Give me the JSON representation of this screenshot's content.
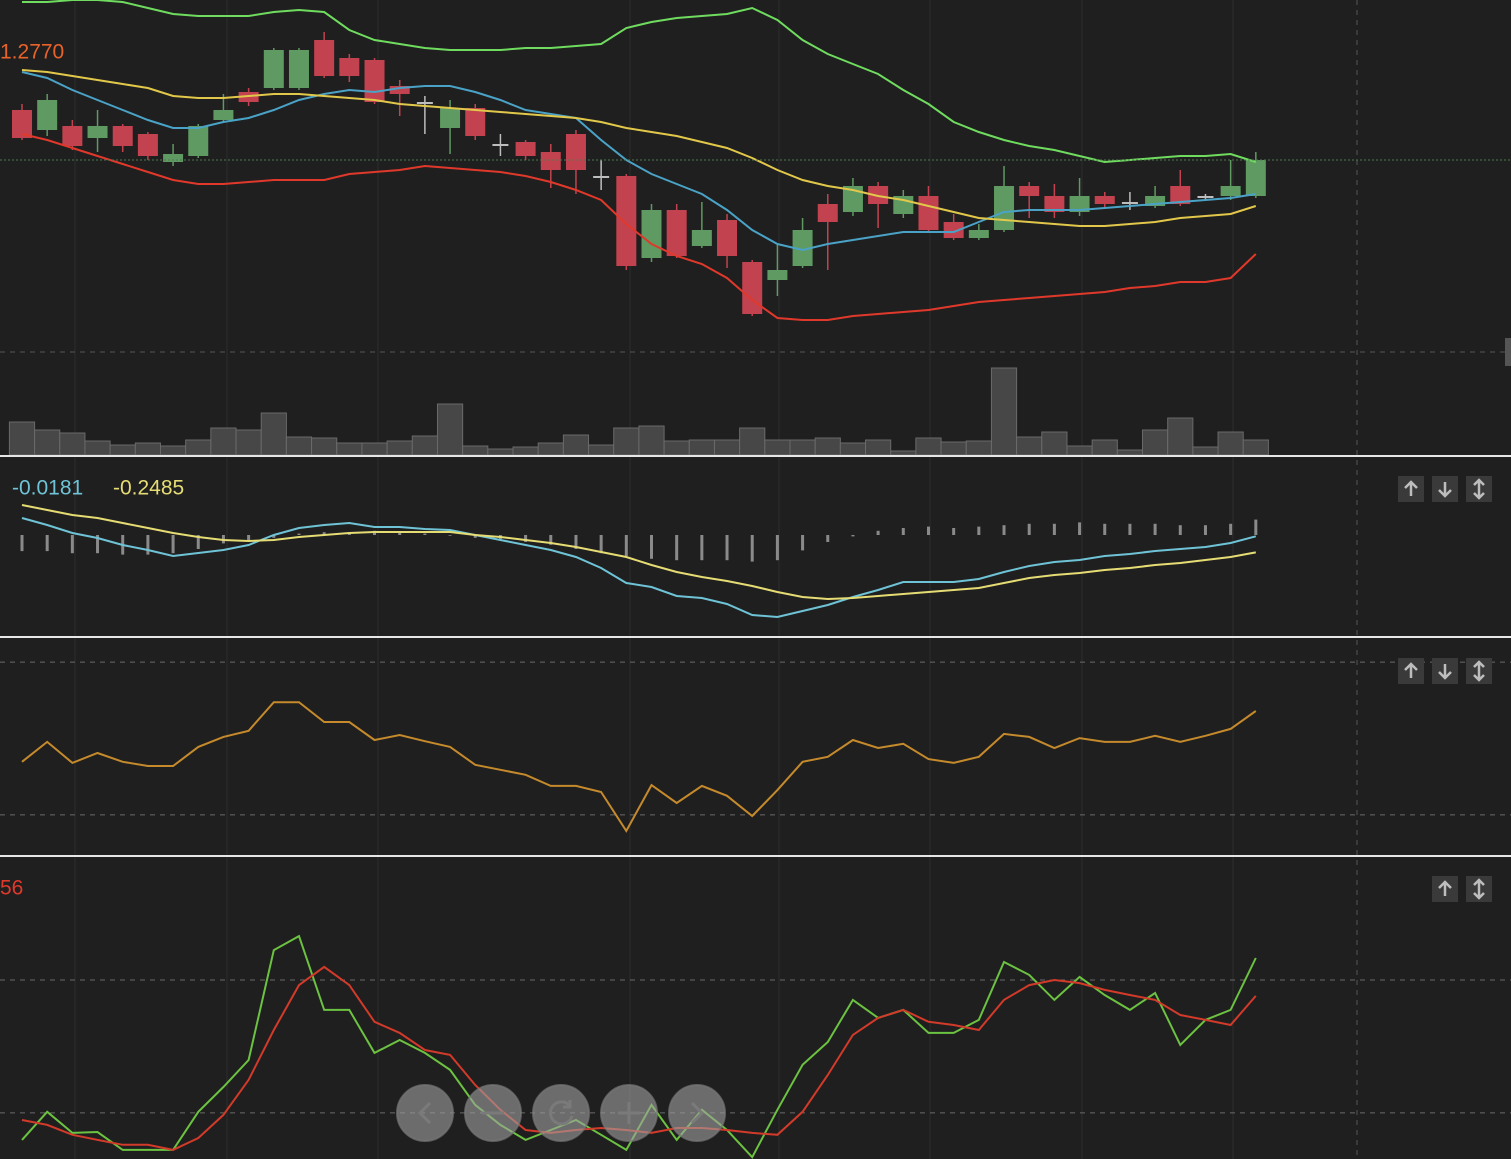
{
  "chart_data": [
    {
      "type": "candlestick",
      "annotation": "1.2770",
      "annotation_color": "#e8632a",
      "ylim": [
        1.2624,
        1.28
      ],
      "colors": {
        "up": "#5e9a62",
        "down": "#c2434f",
        "doji": "#bdbdbd"
      },
      "open": [
        1.2745,
        1.2735,
        1.2737,
        1.2731,
        1.2737,
        1.2733,
        1.2719,
        1.2722,
        1.274,
        1.2754,
        1.2756,
        1.2756,
        1.278,
        1.2771,
        1.277,
        1.2757,
        1.2749,
        1.2736,
        1.2746,
        1.2728,
        1.2729,
        1.2724,
        1.2733,
        1.2712,
        1.2712,
        1.2671,
        1.2695,
        1.2677,
        1.269,
        1.2669,
        1.266,
        1.2667,
        1.2698,
        1.2694,
        1.2707,
        1.2693,
        1.2702,
        1.2689,
        1.2681,
        1.2685,
        1.2707,
        1.2702,
        1.2694,
        1.2702,
        1.2699,
        1.2697,
        1.2707,
        1.2702,
        1.2702,
        1.2702
      ],
      "high": [
        1.2748,
        1.2753,
        1.274,
        1.2745,
        1.2738,
        1.2734,
        1.2728,
        1.2738,
        1.2753,
        1.2756,
        1.2776,
        1.2776,
        1.2784,
        1.2773,
        1.2771,
        1.276,
        1.2752,
        1.275,
        1.2748,
        1.2733,
        1.273,
        1.2728,
        1.2735,
        1.272,
        1.2713,
        1.2698,
        1.2698,
        1.2699,
        1.2693,
        1.267,
        1.2678,
        1.2691,
        1.2703,
        1.2711,
        1.2709,
        1.2705,
        1.2707,
        1.2693,
        1.2688,
        1.2717,
        1.2709,
        1.2708,
        1.2711,
        1.2704,
        1.2704,
        1.2707,
        1.2715,
        1.2703,
        1.272,
        1.2724
      ],
      "low": [
        1.273,
        1.2732,
        1.2725,
        1.2724,
        1.2724,
        1.272,
        1.2717,
        1.2721,
        1.2739,
        1.2747,
        1.2755,
        1.2755,
        1.2761,
        1.2759,
        1.2748,
        1.2742,
        1.2733,
        1.2723,
        1.273,
        1.2722,
        1.272,
        1.2706,
        1.2703,
        1.2705,
        1.2665,
        1.2669,
        1.2671,
        1.2676,
        1.2666,
        1.2642,
        1.2652,
        1.2666,
        1.2665,
        1.2692,
        1.2686,
        1.2691,
        1.2684,
        1.268,
        1.268,
        1.2684,
        1.2691,
        1.2691,
        1.2692,
        1.2696,
        1.2695,
        1.2696,
        1.2697,
        1.27,
        1.27,
        1.2701
      ],
      "close": [
        1.2731,
        1.275,
        1.2727,
        1.2737,
        1.2727,
        1.2722,
        1.2723,
        1.2737,
        1.2745,
        1.2749,
        1.2775,
        1.2775,
        1.2762,
        1.2762,
        1.2749,
        1.2753,
        1.2748,
        1.2746,
        1.2732,
        1.2727,
        1.2722,
        1.2715,
        1.2715,
        1.2711,
        1.2667,
        1.2695,
        1.2672,
        1.2685,
        1.2672,
        1.2643,
        1.2665,
        1.2685,
        1.2689,
        1.2707,
        1.2698,
        1.2702,
        1.2685,
        1.2681,
        1.2685,
        1.2707,
        1.2702,
        1.2694,
        1.2702,
        1.2698,
        1.2698,
        1.2702,
        1.2698,
        1.2701,
        1.2707,
        1.272
      ],
      "series": [
        {
          "color": "#6fdc5f",
          "values": [
            1.2799,
            1.2799,
            1.28,
            1.28,
            1.2799,
            1.2796,
            1.2793,
            1.2792,
            1.2792,
            1.2792,
            1.2794,
            1.2795,
            1.2794,
            1.2785,
            1.278,
            1.2778,
            1.2776,
            1.2775,
            1.2775,
            1.2775,
            1.2776,
            1.2776,
            1.2777,
            1.2778,
            1.2786,
            1.2789,
            1.2791,
            1.2792,
            1.2793,
            1.2796,
            1.279,
            1.278,
            1.2773,
            1.2768,
            1.2763,
            1.2755,
            1.2748,
            1.2739,
            1.2734,
            1.273,
            1.2727,
            1.2725,
            1.2722,
            1.2719,
            1.272,
            1.2721,
            1.2722,
            1.2722,
            1.2723,
            1.2719
          ]
        },
        {
          "color": "#4aa3c7",
          "values": [
            1.2764,
            1.2761,
            1.2755,
            1.275,
            1.2745,
            1.274,
            1.2736,
            1.2736,
            1.2739,
            1.2741,
            1.2745,
            1.275,
            1.2753,
            1.2755,
            1.2754,
            1.2756,
            1.2757,
            1.2757,
            1.2754,
            1.275,
            1.2745,
            1.2743,
            1.2741,
            1.273,
            1.272,
            1.2713,
            1.2708,
            1.2703,
            1.2695,
            1.2685,
            1.2678,
            1.2675,
            1.2678,
            1.268,
            1.2682,
            1.2684,
            1.2684,
            1.2684,
            1.2689,
            1.2694,
            1.2695,
            1.2695,
            1.2695,
            1.2696,
            1.2697,
            1.2698,
            1.2699,
            1.27,
            1.2701,
            1.2703
          ]
        },
        {
          "color": "#e2c84a",
          "values": [
            1.2765,
            1.2764,
            1.2762,
            1.276,
            1.2758,
            1.2756,
            1.2752,
            1.2751,
            1.2751,
            1.2752,
            1.2753,
            1.2753,
            1.2752,
            1.2751,
            1.275,
            1.2748,
            1.2747,
            1.2746,
            1.2745,
            1.2744,
            1.2743,
            1.2742,
            1.2741,
            1.2739,
            1.2736,
            1.2734,
            1.2732,
            1.2729,
            1.2726,
            1.2721,
            1.2715,
            1.271,
            1.2707,
            1.2705,
            1.2702,
            1.27,
            1.2697,
            1.2694,
            1.2691,
            1.269,
            1.2689,
            1.2688,
            1.2687,
            1.2687,
            1.2688,
            1.2689,
            1.2691,
            1.2692,
            1.2693,
            1.2697
          ]
        },
        {
          "color": "#e0392b",
          "values": [
            1.2733,
            1.273,
            1.2726,
            1.2722,
            1.2718,
            1.2714,
            1.271,
            1.2708,
            1.2708,
            1.2709,
            1.271,
            1.271,
            1.271,
            1.2713,
            1.2714,
            1.2715,
            1.2717,
            1.2716,
            1.2715,
            1.2714,
            1.2712,
            1.2709,
            1.2705,
            1.27,
            1.2688,
            1.2678,
            1.2672,
            1.2668,
            1.2661,
            1.265,
            1.2641,
            1.264,
            1.264,
            1.2642,
            1.2643,
            1.2644,
            1.2645,
            1.2647,
            1.2649,
            1.265,
            1.2651,
            1.2652,
            1.2653,
            1.2654,
            1.2656,
            1.2657,
            1.2659,
            1.2659,
            1.2661,
            1.2673
          ]
        }
      ]
    },
    {
      "type": "bar",
      "ylim": [
        0,
        89
      ],
      "color": "#474747",
      "values": [
        33,
        25,
        22,
        14,
        10,
        12,
        9,
        15,
        27,
        25,
        42,
        18,
        17,
        12,
        12,
        14,
        19,
        51,
        9,
        6,
        8,
        12,
        20,
        10,
        27,
        29,
        14,
        15,
        15,
        27,
        15,
        15,
        17,
        12,
        15,
        4,
        17,
        13,
        14,
        87,
        18,
        23,
        9,
        15,
        5,
        25,
        37,
        8,
        23,
        15
      ]
    },
    {
      "type": "macd",
      "ylim": [
        -1.45,
        1.1
      ],
      "histogram_color": "#8a8a8a",
      "histogram": [
        -0.23,
        -0.23,
        -0.26,
        -0.26,
        -0.28,
        -0.28,
        -0.26,
        -0.2,
        -0.12,
        -0.08,
        -0.04,
        0.02,
        0.04,
        0.04,
        0.06,
        0.04,
        0.02,
        -0.01,
        -0.04,
        -0.06,
        -0.1,
        -0.14,
        -0.2,
        -0.26,
        -0.3,
        -0.34,
        -0.36,
        -0.36,
        -0.36,
        -0.38,
        -0.36,
        -0.22,
        -0.1,
        -0.02,
        0.06,
        0.1,
        0.12,
        0.1,
        0.12,
        0.14,
        0.16,
        0.16,
        0.18,
        0.16,
        0.16,
        0.16,
        0.14,
        0.14,
        0.16,
        0.22
      ],
      "series": [
        {
          "color": "#6fc3d6",
          "values": [
            0.2429,
            0.1429,
            0.0286,
            -0.0429,
            -0.1429,
            -0.2143,
            -0.3,
            -0.2571,
            -0.2143,
            -0.1429,
            0,
            0.1,
            0.1429,
            0.1714,
            0.1143,
            0.1143,
            0.0857,
            0.0714,
            0,
            -0.0714,
            -0.1429,
            -0.2143,
            -0.3143,
            -0.4714,
            -0.6857,
            -0.7429,
            -0.8714,
            -0.9,
            -0.9857,
            -1.1429,
            -1.1714,
            -1.0857,
            -1,
            -0.8857,
            -0.7857,
            -0.6714,
            -0.6714,
            -0.6714,
            -0.6286,
            -0.5286,
            -0.4429,
            -0.3857,
            -0.3571,
            -0.3,
            -0.2714,
            -0.2286,
            -0.2,
            -0.1714,
            -0.1143,
            -0.0181
          ]
        },
        {
          "color": "#e6dc74",
          "values": [
            0.4286,
            0.3571,
            0.2857,
            0.2429,
            0.1714,
            0.1,
            0.0286,
            -0.0286,
            -0.0714,
            -0.0857,
            -0.0714,
            -0.0286,
            0,
            0.0286,
            0.0429,
            0.0429,
            0.0429,
            0.0429,
            0,
            -0.0286,
            -0.0714,
            -0.1143,
            -0.1714,
            -0.2429,
            -0.3143,
            -0.4286,
            -0.5286,
            -0.6,
            -0.6571,
            -0.7286,
            -0.8143,
            -0.8857,
            -0.9143,
            -0.9,
            -0.8714,
            -0.8429,
            -0.8143,
            -0.7857,
            -0.7571,
            -0.6857,
            -0.6143,
            -0.5714,
            -0.5429,
            -0.5,
            -0.4714,
            -0.4286,
            -0.4,
            -0.3571,
            -0.3143,
            -0.2485
          ]
        }
      ]
    },
    {
      "type": "line",
      "ylim": [
        19.5,
        76.3
      ],
      "levels": [
        30,
        70
      ],
      "series": [
        {
          "color": "#c58a2c",
          "values": [
            43.9,
            49.1,
            43.6,
            46.2,
            43.9,
            42.8,
            42.8,
            47.8,
            50.4,
            52,
            59.5,
            59.5,
            54.3,
            54.3,
            49.6,
            50.9,
            49.3,
            47.8,
            43.1,
            41.8,
            40.5,
            37.6,
            37.6,
            36,
            25.8,
            37.8,
            33.1,
            37.6,
            35,
            29.7,
            36.5,
            43.9,
            45.2,
            49.6,
            47.5,
            48.6,
            44.6,
            43.6,
            45.2,
            51.2,
            50.4,
            47.5,
            50.1,
            49.1,
            49.1,
            50.7,
            49.1,
            50.7,
            52.5,
            57.2
          ]
        }
      ]
    },
    {
      "type": "line",
      "ylim": [
        -0.8,
        135.5
      ],
      "levels": [
        20,
        80
      ],
      "annotation": "56",
      "annotation_color": "#e0392b",
      "series": [
        {
          "color": "#6cc241",
          "values": [
            7.8,
            20.5,
            11,
            11.4,
            3.3,
            3.3,
            3.3,
            20.5,
            31.7,
            43.9,
            93.5,
            99.8,
            66.5,
            66.5,
            47.1,
            52.9,
            47.1,
            39.4,
            23.6,
            14.6,
            7.8,
            12.3,
            16.8,
            10.1,
            3.3,
            23.6,
            7.8,
            21.4,
            12.3,
            0,
            21.4,
            41.7,
            52,
            71,
            62.9,
            66.5,
            56.1,
            56.1,
            62,
            88.1,
            82.3,
            71,
            81.4,
            73.2,
            66.5,
            74.1,
            50.7,
            62,
            66.5,
            89.9
          ]
        },
        {
          "color": "#d23a2a",
          "values": [
            16.8,
            14.6,
            10.1,
            7.8,
            5.6,
            5.6,
            3.3,
            8.7,
            19.1,
            34.9,
            57.4,
            77.7,
            85.9,
            77.7,
            61.1,
            56.1,
            48.4,
            46.2,
            32.6,
            21.4,
            12.3,
            11,
            12.3,
            13.2,
            12.3,
            11,
            13.2,
            13.2,
            12.3,
            11,
            10.1,
            20.5,
            37.1,
            55.2,
            62.9,
            66.5,
            61.1,
            59.7,
            57.4,
            71,
            77.7,
            80,
            78.6,
            75.5,
            73.2,
            71,
            64.2,
            62,
            59.7,
            72.8
          ]
        }
      ]
    }
  ]
}
